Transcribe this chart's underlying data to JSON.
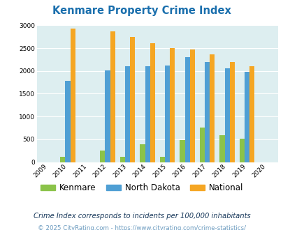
{
  "title": "Kenmare Property Crime Index",
  "years": [
    2009,
    2010,
    2011,
    2012,
    2013,
    2014,
    2015,
    2016,
    2017,
    2018,
    2019,
    2020
  ],
  "kenmare": [
    0,
    120,
    0,
    260,
    110,
    390,
    110,
    490,
    760,
    590,
    510,
    0
  ],
  "north_dakota": [
    0,
    1780,
    0,
    2010,
    2110,
    2110,
    2120,
    2300,
    2200,
    2060,
    1980,
    0
  ],
  "national": [
    0,
    2930,
    0,
    2860,
    2740,
    2610,
    2500,
    2470,
    2360,
    2200,
    2100,
    0
  ],
  "kenmare_color": "#8bc34a",
  "nd_color": "#4f9fd4",
  "national_color": "#f5a623",
  "bg_color": "#ddeef0",
  "title_color": "#1a6fad",
  "ylim": [
    0,
    3000
  ],
  "yticks": [
    0,
    500,
    1000,
    1500,
    2000,
    2500,
    3000
  ],
  "legend_labels": [
    "Kenmare",
    "North Dakota",
    "National"
  ],
  "footnote1": "Crime Index corresponds to incidents per 100,000 inhabitants",
  "footnote2": "© 2025 CityRating.com - https://www.cityrating.com/crime-statistics/",
  "footnote1_color": "#1a3a5c",
  "footnote2_color": "#6a9abf"
}
